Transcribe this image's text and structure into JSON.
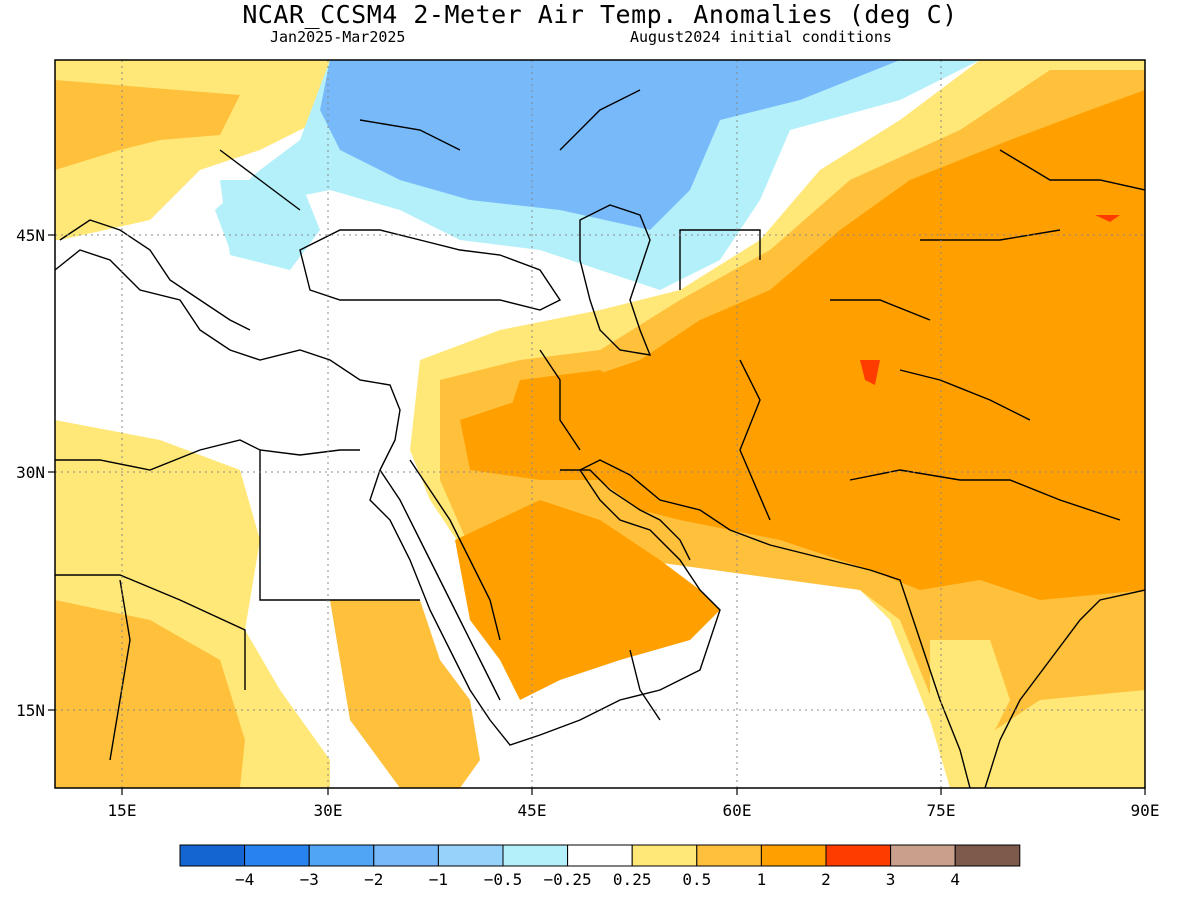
{
  "header": {
    "title": "NCAR_CCSM4 2-Meter Air Temp. Anomalies (deg C)",
    "period": "Jan2025-Mar2025",
    "init": "August2024 initial conditions"
  },
  "map": {
    "lon_labels": [
      "15E",
      "30E",
      "45E",
      "60E",
      "75E",
      "90E"
    ],
    "lat_labels": [
      "45N",
      "30N",
      "15N"
    ]
  },
  "colorbar": {
    "colors": [
      "#1464d2",
      "#2882f0",
      "#50a5f5",
      "#78b9fa",
      "#96d2fa",
      "#b4f0fa",
      "#ffffff",
      "#ffe878",
      "#ffc03c",
      "#ffa000",
      "#ff3c00",
      "#c8a08c",
      "#7d5a4b"
    ],
    "labels": [
      "-4",
      "-3",
      "-2",
      "-1",
      "-0.5",
      "-0.25",
      "0.25",
      "0.5",
      "1",
      "2",
      "3",
      "4"
    ]
  }
}
